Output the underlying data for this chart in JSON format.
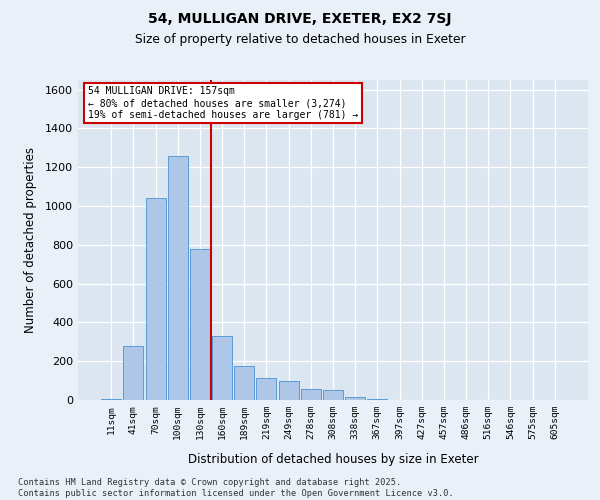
{
  "title1": "54, MULLIGAN DRIVE, EXETER, EX2 7SJ",
  "title2": "Size of property relative to detached houses in Exeter",
  "xlabel": "Distribution of detached houses by size in Exeter",
  "ylabel": "Number of detached properties",
  "bar_labels": [
    "11sqm",
    "41sqm",
    "70sqm",
    "100sqm",
    "130sqm",
    "160sqm",
    "189sqm",
    "219sqm",
    "249sqm",
    "278sqm",
    "308sqm",
    "338sqm",
    "367sqm",
    "397sqm",
    "427sqm",
    "457sqm",
    "486sqm",
    "516sqm",
    "546sqm",
    "575sqm",
    "605sqm"
  ],
  "bar_heights": [
    5,
    280,
    1040,
    1260,
    780,
    330,
    175,
    115,
    100,
    55,
    50,
    15,
    5,
    0,
    0,
    0,
    0,
    0,
    0,
    0,
    0
  ],
  "bar_color": "#aec6e8",
  "bar_edge_color": "#5b9bd5",
  "plot_bg_color": "#dce6f1",
  "fig_bg_color": "#eaf0f8",
  "grid_color": "#ffffff",
  "vline_color": "#cc0000",
  "annotation_line1": "54 MULLIGAN DRIVE: 157sqm",
  "annotation_line2": "← 80% of detached houses are smaller (3,274)",
  "annotation_line3": "19% of semi-detached houses are larger (781) →",
  "footer1": "Contains HM Land Registry data © Crown copyright and database right 2025.",
  "footer2": "Contains public sector information licensed under the Open Government Licence v3.0.",
  "ylim": [
    0,
    1650
  ],
  "yticks": [
    0,
    200,
    400,
    600,
    800,
    1000,
    1200,
    1400,
    1600
  ]
}
